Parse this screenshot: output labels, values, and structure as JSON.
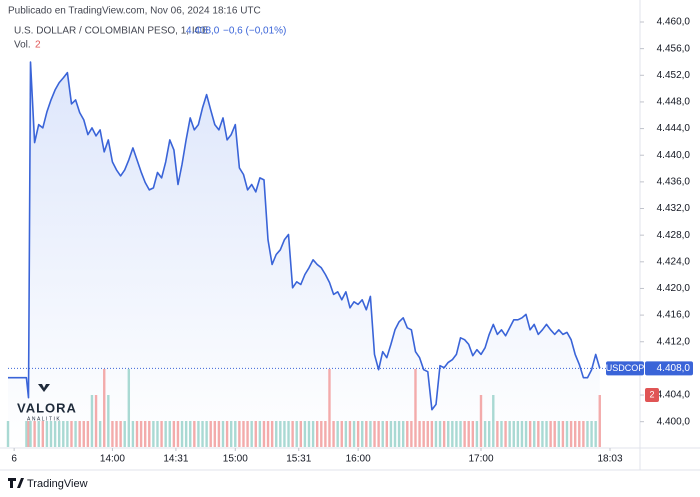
{
  "chart_data": {
    "type": "line",
    "source": "Publicado en TradingView.com, Nov 06, 2024 18:16 UTC",
    "title": "U.S. DOLLAR / COLOMBIAN PESO, 1, ICE",
    "last": {
      "value": 4.408,
      "label": "4.408,0"
    },
    "change_label": "−0,6 (−0,01%)",
    "watermark": [
      "VALORA",
      "ANALITIK"
    ],
    "brand": "TradingView",
    "x": [
      789,
      798,
      799,
      800,
      802,
      804,
      806,
      808,
      810,
      812,
      814,
      816,
      818,
      820,
      822,
      824,
      826,
      828,
      830,
      832,
      834,
      836,
      838,
      840,
      842,
      844,
      846,
      848,
      850,
      852,
      854,
      856,
      858,
      860,
      862,
      864,
      866,
      868,
      870,
      872,
      874,
      876,
      878,
      880,
      882,
      884,
      886,
      888,
      890,
      892,
      894,
      896,
      898,
      900,
      902,
      904,
      906,
      908,
      910,
      912,
      914,
      916,
      918,
      920,
      922,
      924,
      926,
      928,
      930,
      932,
      934,
      936,
      938,
      940,
      942,
      944,
      946,
      948,
      950,
      952,
      954,
      956,
      958,
      960,
      962,
      964,
      966,
      968,
      970,
      972,
      974,
      976,
      978,
      980,
      982,
      984,
      986,
      988,
      990,
      992,
      994,
      996,
      998,
      1000,
      1002,
      1004,
      1006,
      1008,
      1010,
      1012,
      1014,
      1016,
      1018,
      1020,
      1022,
      1024,
      1026,
      1028,
      1030,
      1032,
      1034,
      1036,
      1038,
      1040,
      1042,
      1044,
      1046,
      1048,
      1050,
      1052,
      1054,
      1056,
      1058,
      1060,
      1062,
      1064,
      1066,
      1068,
      1070,
      1072,
      1074,
      1076,
      1078
    ],
    "series": [
      {
        "name": "USDCOP",
        "color": "#3a64d8",
        "area_color": "#dde6fb",
        "values": [
          4.4066,
          4.4066,
          4.4036,
          4.454,
          4.4419,
          4.4446,
          4.4441,
          4.4465,
          4.4483,
          4.4498,
          4.4509,
          4.4516,
          4.4524,
          4.4477,
          4.4483,
          4.4464,
          4.4453,
          4.4431,
          4.4441,
          4.4429,
          4.4438,
          4.4405,
          4.4423,
          4.439,
          4.4378,
          4.4369,
          4.4378,
          4.4393,
          4.4411,
          4.4393,
          4.4375,
          4.4359,
          4.4348,
          4.4351,
          4.4374,
          4.4366,
          4.439,
          4.4423,
          4.4408,
          4.4356,
          4.4386,
          4.4423,
          4.4456,
          4.4438,
          4.4446,
          4.4471,
          4.4491,
          4.4468,
          4.4446,
          4.4438,
          4.4456,
          4.4423,
          4.4431,
          4.4446,
          4.4381,
          4.4371,
          4.4348,
          4.4356,
          4.4345,
          4.4366,
          4.4363,
          4.4273,
          4.4236,
          4.4251,
          4.4258,
          4.4273,
          4.4281,
          4.4201,
          4.421,
          4.4206,
          4.4221,
          4.4231,
          4.4243,
          4.4236,
          4.4231,
          4.4221,
          4.4209,
          4.4191,
          4.4195,
          4.4183,
          4.4195,
          4.4171,
          4.418,
          4.4176,
          4.4183,
          4.4168,
          4.4188,
          4.4101,
          4.4078,
          4.4105,
          4.4096,
          4.4116,
          4.4138,
          4.415,
          4.4156,
          4.4141,
          4.4138,
          4.4105,
          4.4096,
          4.4078,
          4.4075,
          4.4018,
          4.4026,
          4.4084,
          4.4081,
          4.4089,
          4.4093,
          4.4101,
          4.4126,
          4.4123,
          4.4116,
          4.4099,
          4.4108,
          4.4101,
          4.4111,
          4.4131,
          4.4146,
          4.4131,
          4.4138,
          4.4129,
          4.4141,
          4.4153,
          4.4153,
          4.4156,
          4.4161,
          4.4138,
          4.4146,
          4.4131,
          4.4138,
          4.4146,
          4.4138,
          4.4131,
          4.4138,
          4.4131,
          4.4134,
          4.4123,
          4.4101,
          4.4086,
          4.4066,
          4.4066,
          4.4078,
          4.4101,
          4.408
        ]
      }
    ],
    "volume": {
      "name": "Vol.",
      "up_color": "#a9d9d3",
      "down_color": "#f3abab",
      "values": [
        1,
        1,
        1,
        1,
        1,
        1,
        1,
        1,
        1,
        1,
        1,
        1,
        1,
        1,
        1,
        1,
        1,
        1,
        2,
        2,
        1,
        3,
        2,
        1,
        1,
        1,
        1,
        3,
        1,
        1,
        1,
        1,
        1,
        1,
        1,
        1,
        1,
        1,
        1,
        1,
        1,
        1,
        1,
        1,
        1,
        1,
        1,
        1,
        1,
        1,
        1,
        1,
        1,
        1,
        1,
        1,
        1,
        1,
        1,
        1,
        1,
        1,
        1,
        1,
        1,
        1,
        1,
        1,
        1,
        1,
        1,
        1,
        1,
        1,
        1,
        1,
        3,
        1,
        1,
        1,
        1,
        1,
        1,
        1,
        1,
        1,
        1,
        1,
        1,
        1,
        1,
        1,
        1,
        1,
        1,
        1,
        1,
        3,
        1,
        1,
        1,
        1,
        1,
        1,
        1,
        1,
        1,
        1,
        1,
        1,
        1,
        1,
        1,
        2,
        1,
        1,
        2,
        1,
        1,
        1,
        1,
        1,
        1,
        1,
        1,
        1,
        1,
        1,
        1,
        1,
        1,
        1,
        1,
        1,
        1,
        1,
        1,
        1,
        1,
        1,
        1,
        1,
        2
      ]
    },
    "xlim": [
      789,
      1083
    ],
    "xticks": [
      {
        "value": 792,
        "label": "6"
      },
      {
        "value": 840,
        "label": "14:00"
      },
      {
        "value": 871,
        "label": "14:31"
      },
      {
        "value": 900,
        "label": "15:00"
      },
      {
        "value": 931,
        "label": "15:31"
      },
      {
        "value": 960,
        "label": "16:00"
      },
      {
        "value": 1020,
        "label": "17:00"
      },
      {
        "value": 1083,
        "label": "18:03"
      }
    ],
    "ylim": [
      4.3962,
      4.4618
    ],
    "yticks": [
      {
        "value": 4.4,
        "label": "4.400,0"
      },
      {
        "value": 4.404,
        "label": "4.404,0"
      },
      {
        "value": 4.408,
        "label": "4.408,0"
      },
      {
        "value": 4.412,
        "label": "4.412,0"
      },
      {
        "value": 4.416,
        "label": "4.416,0"
      },
      {
        "value": 4.42,
        "label": "4.420,0"
      },
      {
        "value": 4.424,
        "label": "4.424,0"
      },
      {
        "value": 4.428,
        "label": "4.428,0"
      },
      {
        "value": 4.432,
        "label": "4.432,0"
      },
      {
        "value": 4.436,
        "label": "4.436,0"
      },
      {
        "value": 4.44,
        "label": "4.440,0"
      },
      {
        "value": 4.444,
        "label": "4.444,0"
      },
      {
        "value": 4.448,
        "label": "4.448,0"
      },
      {
        "value": 4.452,
        "label": "4.452,0"
      },
      {
        "value": 4.456,
        "label": "4.456,0"
      },
      {
        "value": 4.46,
        "label": "4.460,0"
      }
    ],
    "grid": false
  }
}
